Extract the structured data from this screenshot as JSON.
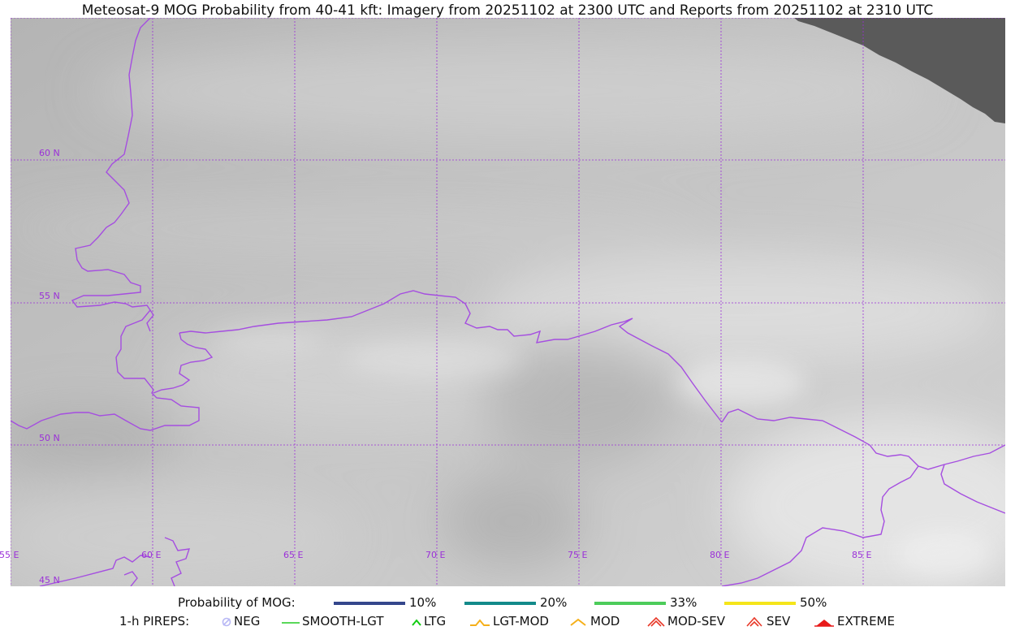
{
  "title": "Meteosat-9 MOG Probability from 40-41 kft: Imagery from 20251102 at 2300 UTC and Reports from 20251102 at 2310 UTC",
  "map": {
    "lat_labels": [
      "60 N",
      "55 N",
      "50 N",
      "45 N"
    ],
    "lon_labels": [
      "55 E",
      "60 E",
      "65 E",
      "70 E",
      "75 E",
      "80 E",
      "85 E"
    ],
    "grid_color": "#9b30d8",
    "border_color": "#a54ee0",
    "nodata_color": "#5a5a5a"
  },
  "legend": {
    "probability": {
      "label": "Probability of MOG:",
      "items": [
        {
          "label": "10%",
          "color": "#34468c"
        },
        {
          "label": "20%",
          "color": "#138a8a"
        },
        {
          "label": "33%",
          "color": "#4ccc5a"
        },
        {
          "label": "50%",
          "color": "#f5e51a"
        }
      ]
    },
    "pireps": {
      "label": "1-h PIREPS:",
      "items": [
        {
          "label": "NEG",
          "icon": "neg-icon",
          "color": "#b8b8f5"
        },
        {
          "label": "SMOOTH-LGT",
          "icon": "smooth-lgt-icon",
          "color": "#22cc22"
        },
        {
          "label": "LTG",
          "icon": "ltg-icon",
          "color": "#11cc11"
        },
        {
          "label": "LGT-MOD",
          "icon": "lgt-mod-icon",
          "color": "#f5b01a"
        },
        {
          "label": "MOD",
          "icon": "mod-icon",
          "color": "#f5b01a"
        },
        {
          "label": "MOD-SEV",
          "icon": "mod-sev-icon",
          "color": "#e83a2a"
        },
        {
          "label": "SEV",
          "icon": "sev-icon",
          "color": "#e83a2a"
        },
        {
          "label": "EXTREME",
          "icon": "extreme-icon",
          "color": "#e81a1a"
        }
      ]
    }
  }
}
